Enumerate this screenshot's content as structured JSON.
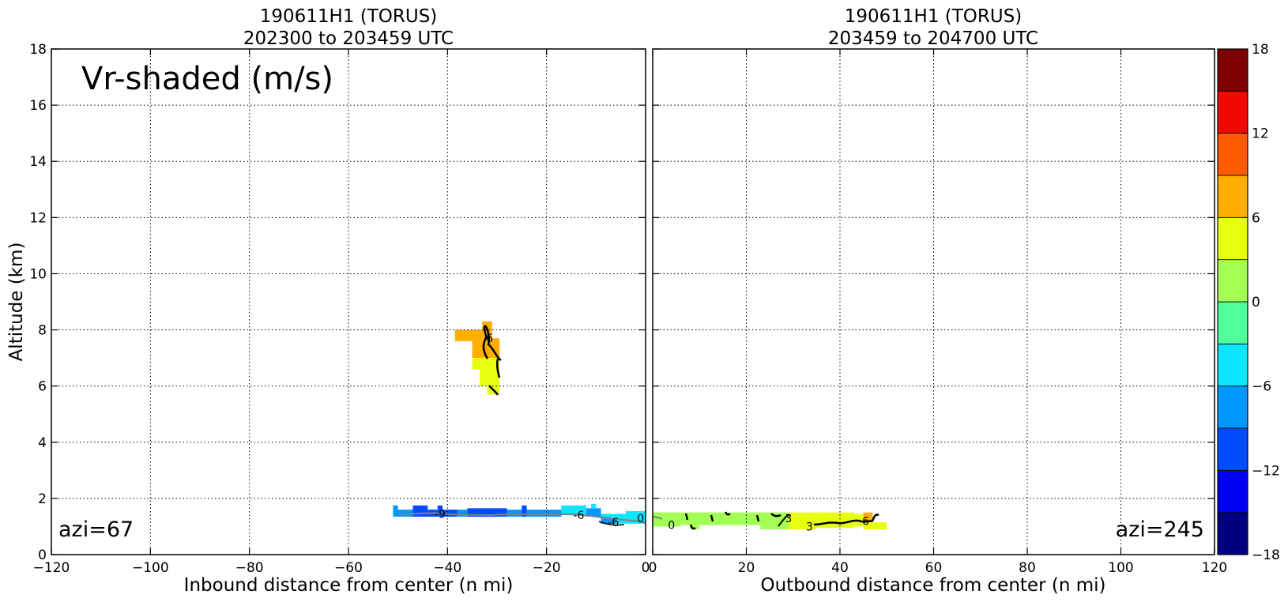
{
  "chart_data": [
    {
      "type": "heatmap",
      "title_line1": "190611H1 (TORUS)",
      "title_line2": "202300 to 203459 UTC",
      "xlabel": "Inbound distance from center (n mi)",
      "ylabel": "Altitude (km)",
      "xlim": [
        -120,
        0
      ],
      "ylim": [
        0,
        18
      ],
      "x_ticks": [
        -120,
        -100,
        -80,
        -60,
        -40,
        -20,
        0
      ],
      "x_tick_labels": [
        "−120",
        "−100",
        "−80",
        "−60",
        "−40",
        "−20",
        "0"
      ],
      "y_ticks": [
        0,
        2,
        4,
        6,
        8,
        10,
        12,
        14,
        16,
        18
      ],
      "y_tick_labels": [
        "0",
        "2",
        "4",
        "6",
        "8",
        "10",
        "12",
        "14",
        "16",
        "18"
      ],
      "grid": true,
      "annotation": "Vr-shaded (m/s)",
      "corner_label": "azi=67",
      "cells": [
        {
          "x0": -38.5,
          "x1": -33,
          "y0": 7.6,
          "y1": 8.0,
          "v": 7.5
        },
        {
          "x0": -33,
          "x1": -31,
          "y0": 7.6,
          "y1": 8.3,
          "v": 7.5
        },
        {
          "x0": -35,
          "x1": -31,
          "y0": 7.0,
          "y1": 7.6,
          "v": 7.5
        },
        {
          "x0": -31,
          "x1": -29.5,
          "y0": 6.8,
          "y1": 7.7,
          "v": 7.5
        },
        {
          "x0": -35,
          "x1": -33.5,
          "y0": 6.6,
          "y1": 7.0,
          "v": 4.5
        },
        {
          "x0": -33.5,
          "x1": -29.5,
          "y0": 6.0,
          "y1": 7.0,
          "v": 4.5
        },
        {
          "x0": -32,
          "x1": -29.5,
          "y0": 5.7,
          "y1": 6.0,
          "v": 4.5
        },
        {
          "x0": -51,
          "x1": -47,
          "y0": 1.35,
          "y1": 1.6,
          "v": -7.5
        },
        {
          "x0": -51,
          "x1": -50,
          "y0": 1.6,
          "y1": 1.75,
          "v": -7.5
        },
        {
          "x0": -47,
          "x1": -44,
          "y0": 1.35,
          "y1": 1.75,
          "v": -10.5
        },
        {
          "x0": -44,
          "x1": -38,
          "y0": 1.35,
          "y1": 1.6,
          "v": -10.5
        },
        {
          "x0": -42,
          "x1": -41,
          "y0": 1.6,
          "y1": 1.75,
          "v": -10.5
        },
        {
          "x0": -38,
          "x1": -36,
          "y0": 1.35,
          "y1": 1.6,
          "v": -7.5
        },
        {
          "x0": -36,
          "x1": -28,
          "y0": 1.35,
          "y1": 1.65,
          "v": -10.5
        },
        {
          "x0": -28,
          "x1": -25,
          "y0": 1.35,
          "y1": 1.6,
          "v": -7.5
        },
        {
          "x0": -25,
          "x1": -24,
          "y0": 1.35,
          "y1": 1.75,
          "v": -10.5
        },
        {
          "x0": -24,
          "x1": -17,
          "y0": 1.35,
          "y1": 1.6,
          "v": -7.5
        },
        {
          "x0": -17,
          "x1": -12,
          "y0": 1.4,
          "y1": 1.75,
          "v": -4.5
        },
        {
          "x0": -12,
          "x1": -9,
          "y0": 1.35,
          "y1": 1.65,
          "v": -7.5
        },
        {
          "x0": -11,
          "x1": -10,
          "y0": 1.65,
          "y1": 1.8,
          "v": -4.5
        },
        {
          "x0": -9,
          "x1": -4,
          "y0": 1.1,
          "y1": 1.45,
          "v": -4.5
        },
        {
          "x0": -9,
          "x1": -6,
          "y0": 1.1,
          "y1": 1.3,
          "v": -7.5
        },
        {
          "x0": -4,
          "x1": 0,
          "y0": 1.1,
          "y1": 1.55,
          "v": -4.5
        }
      ],
      "contour_labels": [
        {
          "x": -31.5,
          "y": 7.7,
          "text": "6"
        },
        {
          "x": -41.5,
          "y": 1.45,
          "text": "-9"
        },
        {
          "x": -13.5,
          "y": 1.4,
          "text": "-6"
        },
        {
          "x": -6.5,
          "y": 1.15,
          "text": "-6"
        },
        {
          "x": -1,
          "y": 1.3,
          "text": "0"
        }
      ]
    },
    {
      "type": "heatmap",
      "title_line1": "190611H1 (TORUS)",
      "title_line2": "203459 to 204700 UTC",
      "xlabel": "Outbound distance from center (n mi)",
      "ylabel": "",
      "xlim": [
        0,
        120
      ],
      "ylim": [
        0,
        18
      ],
      "x_ticks": [
        0,
        20,
        40,
        60,
        80,
        100,
        120
      ],
      "x_tick_labels": [
        "0",
        "20",
        "40",
        "60",
        "80",
        "100",
        "120"
      ],
      "grid": true,
      "corner_label": "azi=245",
      "cells": [
        {
          "x0": 0,
          "x1": 2,
          "y0": 1.2,
          "y1": 1.5,
          "v": -4.5
        },
        {
          "x0": 0,
          "x1": 6,
          "y0": 1.0,
          "y1": 1.5,
          "v": 1.5
        },
        {
          "x0": 6,
          "x1": 25,
          "y0": 1.05,
          "y1": 1.5,
          "v": 1.5
        },
        {
          "x0": 8,
          "x1": 10,
          "y0": 0.9,
          "y1": 1.05,
          "v": 1.5
        },
        {
          "x0": 23,
          "x1": 25,
          "y0": 0.9,
          "y1": 1.05,
          "v": 1.5
        },
        {
          "x0": 25,
          "x1": 29,
          "y0": 0.9,
          "y1": 1.5,
          "v": 1.5
        },
        {
          "x0": 29,
          "x1": 35,
          "y0": 0.9,
          "y1": 1.5,
          "v": 4.5
        },
        {
          "x0": 35,
          "x1": 43,
          "y0": 0.95,
          "y1": 1.5,
          "v": 4.5
        },
        {
          "x0": 43,
          "x1": 45,
          "y0": 1.0,
          "y1": 1.45,
          "v": 4.5
        },
        {
          "x0": 45,
          "x1": 47,
          "y0": 1.15,
          "y1": 1.5,
          "v": 7.5
        },
        {
          "x0": 45,
          "x1": 50,
          "y0": 0.9,
          "y1": 1.15,
          "v": 4.5
        }
      ],
      "contour_labels": [
        {
          "x": 4,
          "y": 1.05,
          "text": "0"
        },
        {
          "x": 29,
          "y": 1.3,
          "text": "3"
        },
        {
          "x": 33.5,
          "y": 1.0,
          "text": "3"
        },
        {
          "x": 45.5,
          "y": 1.2,
          "text": "6"
        }
      ]
    }
  ],
  "colorbar": {
    "bounds": [
      -18,
      18
    ],
    "step": 3,
    "tick_values": [
      -18,
      -12,
      -6,
      0,
      6,
      12,
      18
    ],
    "tick_labels": [
      "−18",
      "−12",
      "−6",
      "0",
      "6",
      "12",
      "18"
    ],
    "colors": [
      "#00007f",
      "#0000f1",
      "#004cff",
      "#0098ff",
      "#0de5ff",
      "#4eff9a",
      "#a3ff54",
      "#e7fe0f",
      "#ffae00",
      "#ff5b00",
      "#ee0a00",
      "#7f0000"
    ]
  }
}
